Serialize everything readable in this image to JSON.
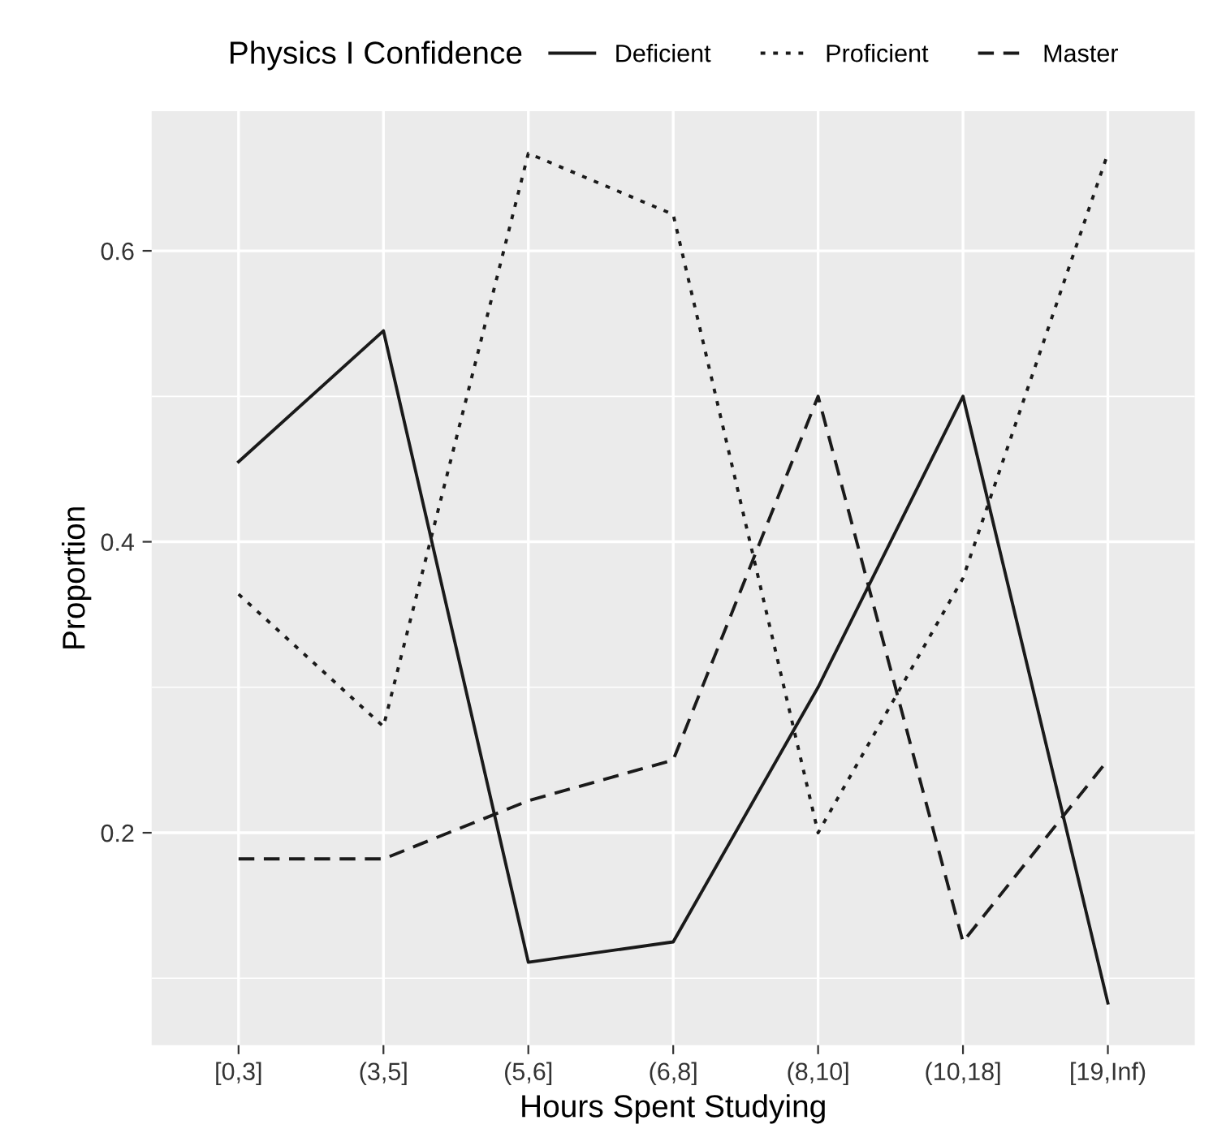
{
  "chart_data": {
    "type": "line",
    "xlabel": "Hours Spent Studying",
    "ylabel": "Proportion",
    "legend_title": "Physics I Confidence",
    "legend": "top",
    "categories": [
      "[0,3]",
      "(3,5]",
      "(5,6]",
      "(6,8]",
      "(8,10]",
      "(10,18]",
      "[19,Inf)"
    ],
    "series": [
      {
        "name": "Deficient",
        "color": "#1a1a1a",
        "line_style": "solid",
        "values": [
          0.455,
          0.545,
          0.111,
          0.125,
          0.3,
          0.5,
          0.083
        ]
      },
      {
        "name": "Proficient",
        "color": "#1a1a1a",
        "line_style": "dotted",
        "values": [
          0.364,
          0.273,
          0.667,
          0.625,
          0.2,
          0.375,
          0.667
        ]
      },
      {
        "name": "Master",
        "color": "#1a1a1a",
        "line_style": "dashed",
        "values": [
          0.182,
          0.182,
          0.222,
          0.25,
          0.5,
          0.125,
          0.25
        ]
      }
    ],
    "ylim": [
      0.054,
      0.696
    ],
    "yticks": [
      0.2,
      0.4,
      0.6
    ],
    "grid": true,
    "marker": "none"
  }
}
